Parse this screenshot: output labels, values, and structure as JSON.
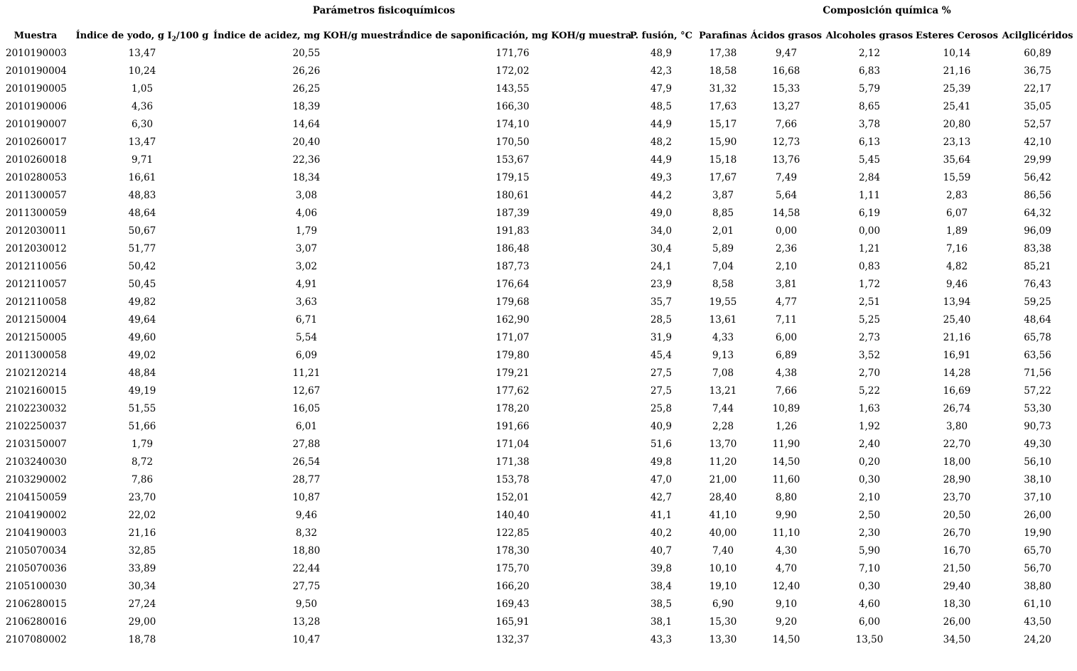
{
  "page": {
    "background_color": "#ffffff",
    "text_color": "#000000"
  },
  "table": {
    "group_headers": [
      {
        "label": "Parámetros fisicoquímicos",
        "span": 4
      },
      {
        "label": "Composición química %",
        "span": 5
      }
    ],
    "columns": [
      {
        "label": "Muestra"
      },
      {
        "label_prefix": "Índice de yodo, g I",
        "label_sub": "2",
        "label_suffix": "/100 g"
      },
      {
        "label": "Índice de acidez, mg KOH/g muestra"
      },
      {
        "label": "Índice de saponificación, mg KOH/g muestra"
      },
      {
        "label": "P. fusión, °C"
      },
      {
        "label": "Parafinas"
      },
      {
        "label": "Ácidos grasos"
      },
      {
        "label": "Alcoholes grasos"
      },
      {
        "label": "Esteres Cerosos"
      },
      {
        "label": "Acilglicéridos"
      }
    ],
    "rows": [
      [
        "2010190003",
        "13,47",
        "20,55",
        "171,76",
        "48,9",
        "17,38",
        "9,47",
        "2,12",
        "10,14",
        "60,89"
      ],
      [
        "2010190004",
        "10,24",
        "26,26",
        "172,02",
        "42,3",
        "18,58",
        "16,68",
        "6,83",
        "21,16",
        "36,75"
      ],
      [
        "2010190005",
        "1,05",
        "26,25",
        "143,55",
        "47,9",
        "31,32",
        "15,33",
        "5,79",
        "25,39",
        "22,17"
      ],
      [
        "2010190006",
        "4,36",
        "18,39",
        "166,30",
        "48,5",
        "17,63",
        "13,27",
        "8,65",
        "25,41",
        "35,05"
      ],
      [
        "2010190007",
        "6,30",
        "14,64",
        "174,10",
        "44,9",
        "15,17",
        "7,66",
        "3,78",
        "20,80",
        "52,57"
      ],
      [
        "2010260017",
        "13,47",
        "20,40",
        "170,50",
        "48,2",
        "15,90",
        "12,73",
        "6,13",
        "23,13",
        "42,10"
      ],
      [
        "2010260018",
        "9,71",
        "22,36",
        "153,67",
        "44,9",
        "15,18",
        "13,76",
        "5,45",
        "35,64",
        "29,99"
      ],
      [
        "2010280053",
        "16,61",
        "18,34",
        "179,15",
        "49,3",
        "17,67",
        "7,49",
        "2,84",
        "15,59",
        "56,42"
      ],
      [
        "2011300057",
        "48,83",
        "3,08",
        "180,61",
        "44,2",
        "3,87",
        "5,64",
        "1,11",
        "2,83",
        "86,56"
      ],
      [
        "2011300059",
        "48,64",
        "4,06",
        "187,39",
        "49,0",
        "8,85",
        "14,58",
        "6,19",
        "6,07",
        "64,32"
      ],
      [
        "2012030011",
        "50,67",
        "1,79",
        "191,83",
        "34,0",
        "2,01",
        "0,00",
        "0,00",
        "1,89",
        "96,09"
      ],
      [
        "2012030012",
        "51,77",
        "3,07",
        "186,48",
        "30,4",
        "5,89",
        "2,36",
        "1,21",
        "7,16",
        "83,38"
      ],
      [
        "2012110056",
        "50,42",
        "3,02",
        "187,73",
        "24,1",
        "7,04",
        "2,10",
        "0,83",
        "4,82",
        "85,21"
      ],
      [
        "2012110057",
        "50,45",
        "4,91",
        "176,64",
        "23,9",
        "8,58",
        "3,81",
        "1,72",
        "9,46",
        "76,43"
      ],
      [
        "2012110058",
        "49,82",
        "3,63",
        "179,68",
        "35,7",
        "19,55",
        "4,77",
        "2,51",
        "13,94",
        "59,25"
      ],
      [
        "2012150004",
        "49,64",
        "6,71",
        "162,90",
        "28,5",
        "13,61",
        "7,11",
        "5,25",
        "25,40",
        "48,64"
      ],
      [
        "2012150005",
        "49,60",
        "5,54",
        "171,07",
        "31,9",
        "4,33",
        "6,00",
        "2,73",
        "21,16",
        "65,78"
      ],
      [
        "2011300058",
        "49,02",
        "6,09",
        "179,80",
        "45,4",
        "9,13",
        "6,89",
        "3,52",
        "16,91",
        "63,56"
      ],
      [
        "2102120214",
        "48,84",
        "11,21",
        "179,21",
        "27,5",
        "7,08",
        "4,38",
        "2,70",
        "14,28",
        "71,56"
      ],
      [
        "2102160015",
        "49,19",
        "12,67",
        "177,62",
        "27,5",
        "13,21",
        "7,66",
        "5,22",
        "16,69",
        "57,22"
      ],
      [
        "2102230032",
        "51,55",
        "16,05",
        "178,20",
        "25,8",
        "7,44",
        "10,89",
        "1,63",
        "26,74",
        "53,30"
      ],
      [
        "2102250037",
        "51,66",
        "6,01",
        "191,66",
        "40,9",
        "2,28",
        "1,26",
        "1,92",
        "3,80",
        "90,73"
      ],
      [
        "2103150007",
        "1,79",
        "27,88",
        "171,04",
        "51,6",
        "13,70",
        "11,90",
        "2,40",
        "22,70",
        "49,30"
      ],
      [
        "2103240030",
        "8,72",
        "26,54",
        "171,38",
        "49,8",
        "11,20",
        "14,50",
        "0,20",
        "18,00",
        "56,10"
      ],
      [
        "2103290002",
        "7,86",
        "28,77",
        "153,78",
        "47,0",
        "21,00",
        "11,60",
        "0,30",
        "28,90",
        "38,10"
      ],
      [
        "2104150059",
        "23,70",
        "10,87",
        "152,01",
        "42,7",
        "28,40",
        "8,80",
        "2,10",
        "23,70",
        "37,10"
      ],
      [
        "2104190002",
        "22,02",
        "9,46",
        "140,40",
        "41,1",
        "41,10",
        "9,90",
        "2,50",
        "20,50",
        "26,00"
      ],
      [
        "2104190003",
        "21,16",
        "8,32",
        "122,85",
        "40,2",
        "40,00",
        "11,10",
        "2,30",
        "26,70",
        "19,90"
      ],
      [
        "2105070034",
        "32,85",
        "18,80",
        "178,30",
        "40,7",
        "7,40",
        "4,30",
        "5,90",
        "16,70",
        "65,70"
      ],
      [
        "2105070036",
        "33,89",
        "22,44",
        "175,70",
        "39,8",
        "10,10",
        "4,70",
        "7,10",
        "21,50",
        "56,70"
      ],
      [
        "2105100030",
        "30,34",
        "27,75",
        "166,20",
        "38,4",
        "19,10",
        "12,40",
        "0,30",
        "29,40",
        "38,80"
      ],
      [
        "2106280015",
        "27,24",
        "9,50",
        "169,43",
        "38,5",
        "6,90",
        "9,10",
        "4,60",
        "18,30",
        "61,10"
      ],
      [
        "2106280016",
        "29,00",
        "13,28",
        "165,91",
        "38,1",
        "15,30",
        "9,20",
        "6,00",
        "26,00",
        "43,50"
      ],
      [
        "2107080002",
        "18,78",
        "10,47",
        "132,37",
        "43,3",
        "13,30",
        "14,50",
        "13,50",
        "34,50",
        "24,20"
      ]
    ]
  }
}
